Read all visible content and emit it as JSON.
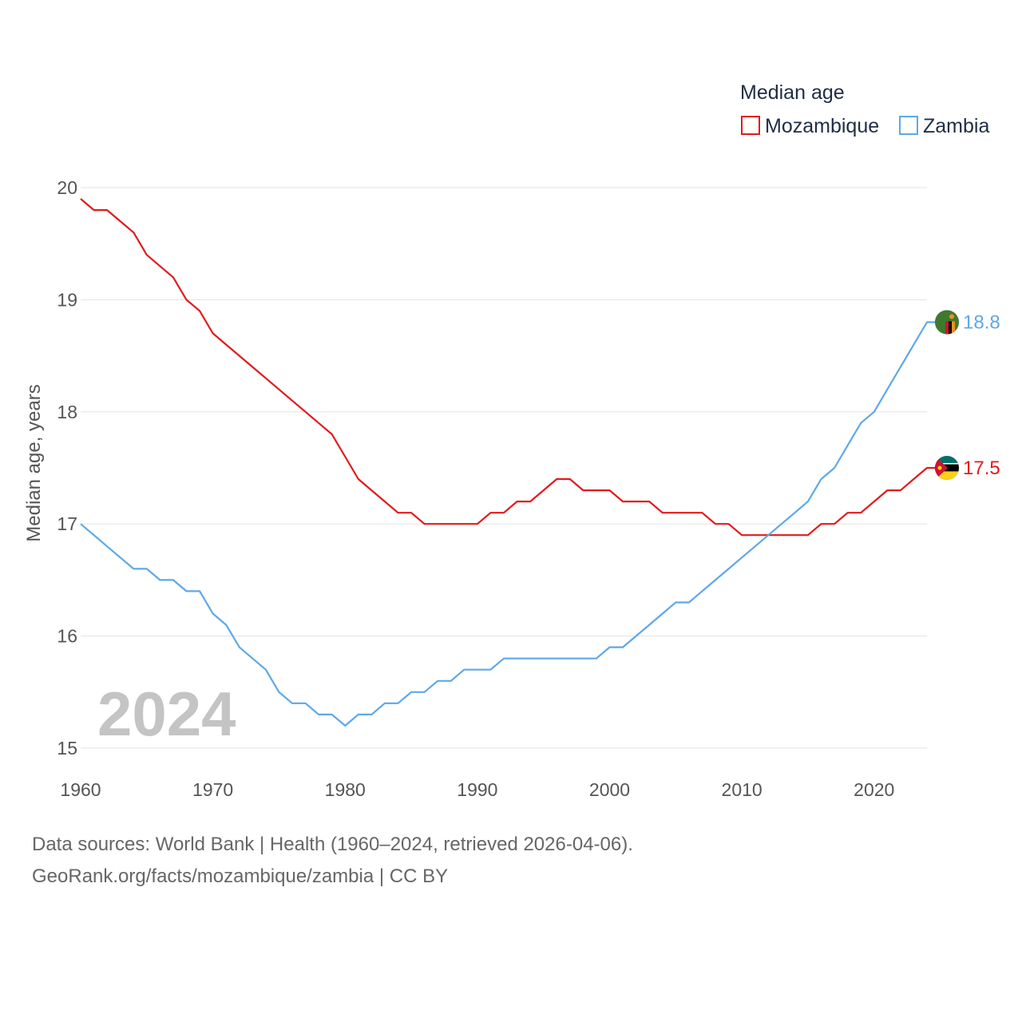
{
  "chart_data": {
    "type": "line",
    "title": "",
    "legend_title": "Median age",
    "legend_position": "top-right",
    "ylabel": "Median age, years",
    "xlabel": "",
    "ylim": [
      15,
      20
    ],
    "xlim": [
      1960,
      2024
    ],
    "yticks": [
      "15",
      "16",
      "17",
      "18",
      "19",
      "20"
    ],
    "xticks": [
      "1960",
      "1970",
      "1980",
      "1990",
      "2000",
      "2010",
      "2020"
    ],
    "grid": true,
    "year_watermark": "2024",
    "x": [
      1960,
      1961,
      1962,
      1963,
      1964,
      1965,
      1966,
      1967,
      1968,
      1969,
      1970,
      1971,
      1972,
      1973,
      1974,
      1975,
      1976,
      1977,
      1978,
      1979,
      1980,
      1981,
      1982,
      1983,
      1984,
      1985,
      1986,
      1987,
      1988,
      1989,
      1990,
      1991,
      1992,
      1993,
      1994,
      1995,
      1996,
      1997,
      1998,
      1999,
      2000,
      2001,
      2002,
      2003,
      2004,
      2005,
      2006,
      2007,
      2008,
      2009,
      2010,
      2011,
      2012,
      2013,
      2014,
      2015,
      2016,
      2017,
      2018,
      2019,
      2020,
      2021,
      2022,
      2023,
      2024
    ],
    "series": [
      {
        "name": "Mozambique",
        "color": "#e31a1c",
        "end_label": "17.5",
        "flag": "mozambique-flag-icon",
        "values": [
          19.9,
          19.8,
          19.8,
          19.7,
          19.6,
          19.4,
          19.3,
          19.2,
          19.0,
          18.9,
          18.7,
          18.6,
          18.5,
          18.4,
          18.3,
          18.2,
          18.1,
          18.0,
          17.9,
          17.8,
          17.6,
          17.4,
          17.3,
          17.2,
          17.1,
          17.1,
          17.0,
          17.0,
          17.0,
          17.0,
          17.0,
          17.1,
          17.1,
          17.2,
          17.2,
          17.3,
          17.4,
          17.4,
          17.3,
          17.3,
          17.3,
          17.2,
          17.2,
          17.2,
          17.1,
          17.1,
          17.1,
          17.1,
          17.0,
          17.0,
          16.9,
          16.9,
          16.9,
          16.9,
          16.9,
          16.9,
          17.0,
          17.0,
          17.1,
          17.1,
          17.2,
          17.3,
          17.3,
          17.4,
          17.5
        ]
      },
      {
        "name": "Zambia",
        "color": "#5ea8e8",
        "end_label": "18.8",
        "flag": "zambia-flag-icon",
        "values": [
          17.0,
          16.9,
          16.8,
          16.7,
          16.6,
          16.6,
          16.5,
          16.5,
          16.4,
          16.4,
          16.2,
          16.1,
          15.9,
          15.8,
          15.7,
          15.5,
          15.4,
          15.4,
          15.3,
          15.3,
          15.2,
          15.3,
          15.3,
          15.4,
          15.4,
          15.5,
          15.5,
          15.6,
          15.6,
          15.7,
          15.7,
          15.7,
          15.8,
          15.8,
          15.8,
          15.8,
          15.8,
          15.8,
          15.8,
          15.8,
          15.9,
          15.9,
          16.0,
          16.1,
          16.2,
          16.3,
          16.3,
          16.4,
          16.5,
          16.6,
          16.7,
          16.8,
          16.9,
          17.0,
          17.1,
          17.2,
          17.4,
          17.5,
          17.7,
          17.9,
          18.0,
          18.2,
          18.4,
          18.6,
          18.8
        ]
      }
    ]
  },
  "footer": {
    "line1": "Data sources: World Bank | Health (1960–2024, retrieved 2026-04-06).",
    "line2": "GeoRank.org/facts/mozambique/zambia | CC BY"
  }
}
